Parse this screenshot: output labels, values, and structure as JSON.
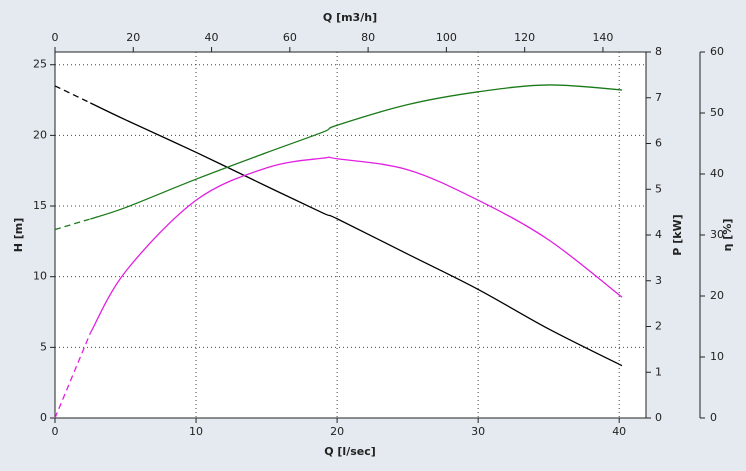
{
  "chart_data": {
    "type": "line",
    "xlabel": "Q [l/sec]",
    "x2label": "Q [m3/h]",
    "ylabel": "H [m]",
    "y2label": "P [kW]",
    "y3label": "η [%]",
    "x": [
      0,
      2.5,
      5,
      10,
      15,
      19,
      20,
      25,
      30,
      35,
      40.2
    ],
    "dashed_below_x": 2.5,
    "series": [
      {
        "axis": "y",
        "color": "#000000",
        "values": [
          23.5,
          22.3,
          21.1,
          18.8,
          16.4,
          14.5,
          14.1,
          11.6,
          9.1,
          6.3,
          3.7
        ]
      },
      {
        "axis": "y2",
        "color": "#1a7a1a",
        "values": [
          4.12,
          4.35,
          4.6,
          5.22,
          5.8,
          6.25,
          6.4,
          6.85,
          7.13,
          7.28,
          7.17
        ]
      },
      {
        "axis": "y3",
        "color": "#e020e0",
        "values": [
          0,
          13.9,
          24,
          35.7,
          41,
          42.6,
          42.5,
          40.7,
          35.7,
          29.2,
          19.8
        ]
      }
    ],
    "xlim": [
      0,
      41.9
    ],
    "xticks": [
      0,
      10,
      20,
      30,
      40
    ],
    "x2lim": [
      0,
      151
    ],
    "x2ticks": [
      0,
      20,
      40,
      60,
      80,
      100,
      120,
      140
    ],
    "ylim": [
      0,
      25.9
    ],
    "yticks": [
      0,
      5,
      10,
      15,
      20,
      25
    ],
    "y2lim": [
      0,
      8
    ],
    "y2ticks": [
      0,
      1,
      2,
      3,
      4,
      5,
      6,
      7,
      8
    ],
    "y3lim": [
      0,
      60
    ],
    "y3ticks": [
      0,
      10,
      20,
      30,
      40,
      50,
      60
    ],
    "grid": true
  }
}
